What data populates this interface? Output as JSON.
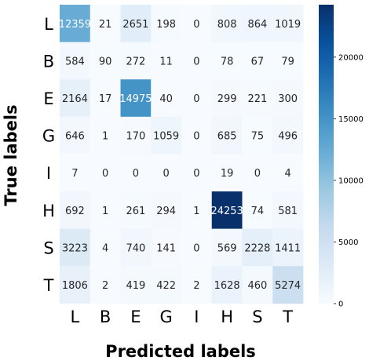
{
  "chart_data": {
    "type": "heatmap",
    "xlabel": "Predicted labels",
    "ylabel": "True labels",
    "x_categories": [
      "L",
      "B",
      "E",
      "G",
      "I",
      "H",
      "S",
      "T"
    ],
    "y_categories": [
      "L",
      "B",
      "E",
      "G",
      "I",
      "H",
      "S",
      "T"
    ],
    "values": [
      [
        12359,
        21,
        2651,
        198,
        0,
        808,
        864,
        1019
      ],
      [
        584,
        90,
        272,
        11,
        0,
        78,
        67,
        79
      ],
      [
        2164,
        17,
        14975,
        40,
        0,
        299,
        221,
        300
      ],
      [
        646,
        1,
        170,
        1059,
        0,
        685,
        75,
        496
      ],
      [
        7,
        0,
        0,
        0,
        0,
        19,
        0,
        4
      ],
      [
        692,
        1,
        261,
        294,
        1,
        24253,
        74,
        581
      ],
      [
        3223,
        4,
        740,
        141,
        0,
        569,
        2228,
        1411
      ],
      [
        1806,
        2,
        419,
        422,
        2,
        1628,
        460,
        5274
      ]
    ],
    "colorbar": {
      "min": 0,
      "max": 24253,
      "ticks": [
        "0",
        "5000",
        "10000",
        "15000",
        "20000"
      ],
      "tick_values": [
        0,
        5000,
        10000,
        15000,
        20000
      ],
      "colormap": "Blues"
    }
  }
}
